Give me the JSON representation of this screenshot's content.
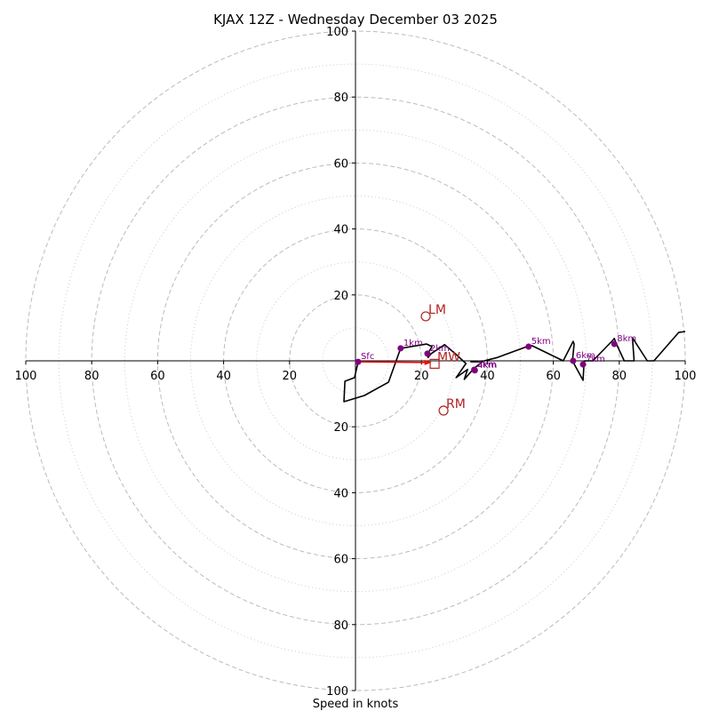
{
  "chart_data": {
    "type": "line",
    "subtype": "hodograph",
    "title": "KJAX 12Z - Wednesday December 03 2025",
    "xlabel": "Speed in knots",
    "ylabel": "",
    "units": "knots",
    "range": [
      0,
      100
    ],
    "ring_major": [
      20,
      40,
      60,
      80,
      100
    ],
    "ring_minor": [
      10,
      30,
      50,
      70,
      90
    ],
    "x_tick_labels_left": [
      "100",
      "80",
      "60",
      "40",
      "20"
    ],
    "x_tick_labels_right": [
      "20",
      "40",
      "60",
      "80",
      "100"
    ],
    "y_tick_labels_top": [
      "100",
      "80",
      "60",
      "40",
      "20"
    ],
    "y_tick_labels_bottom": [
      "20",
      "40",
      "60",
      "80",
      "100"
    ],
    "grid": true,
    "colors": {
      "hodograph_line": "#000000",
      "height_markers": "#800080",
      "storm_motion": "#b22222",
      "shear_vector": "#ff0000",
      "grid": "#bbbbbb",
      "axes": "#000000"
    },
    "hodograph_uv": [
      [
        0.8,
        -0.3
      ],
      [
        -0.3,
        -5.1
      ],
      [
        -3.2,
        -6.2
      ],
      [
        -3.5,
        -12.4
      ],
      [
        2.7,
        -10.5
      ],
      [
        10.0,
        -6.5
      ],
      [
        13.7,
        3.8
      ],
      [
        21.6,
        5.1
      ],
      [
        23.2,
        4.3
      ],
      [
        21.8,
        2.0
      ],
      [
        22.0,
        1.0
      ],
      [
        23.0,
        2.2
      ],
      [
        27.0,
        4.9
      ],
      [
        30.0,
        2.4
      ],
      [
        33.5,
        -0.8
      ],
      [
        30.5,
        -5.1
      ],
      [
        34.0,
        -2.6
      ],
      [
        33.0,
        -5.6
      ],
      [
        36.0,
        -2.2
      ],
      [
        38.5,
        -0.3
      ],
      [
        35.0,
        -0.3
      ],
      [
        39.0,
        0.0
      ],
      [
        43.0,
        1.0
      ],
      [
        52.0,
        4.3
      ],
      [
        53.5,
        4.6
      ],
      [
        63.0,
        0.0
      ],
      [
        66.0,
        5.9
      ],
      [
        66.3,
        5.1
      ],
      [
        65.8,
        0.0
      ],
      [
        69.0,
        -5.9
      ],
      [
        69.3,
        -1.1
      ],
      [
        69.5,
        0.0
      ],
      [
        72.0,
        0.0
      ],
      [
        78.0,
        6.2
      ],
      [
        78.5,
        6.8
      ],
      [
        79.0,
        5.4
      ],
      [
        81.5,
        0.0
      ],
      [
        84.5,
        0.0
      ],
      [
        84.0,
        7.0
      ],
      [
        88.5,
        0.0
      ],
      [
        90.5,
        0.0
      ],
      [
        98.0,
        8.6
      ],
      [
        100.0,
        8.9
      ]
    ],
    "height_markers": [
      {
        "label": "Sfc",
        "u": 0.8,
        "v": -0.3
      },
      {
        "label": "1km",
        "u": 13.7,
        "v": 3.8
      },
      {
        "label": "2km",
        "u": 21.8,
        "v": 2.2
      },
      {
        "label": "3km",
        "u": 36.0,
        "v": -2.7
      },
      {
        "label": "4km",
        "u": 36.2,
        "v": -2.9
      },
      {
        "label": "5km",
        "u": 52.5,
        "v": 4.3
      },
      {
        "label": "6km",
        "u": 66.0,
        "v": 0.0
      },
      {
        "label": "7km",
        "u": 69.0,
        "v": -1.1
      },
      {
        "label": "8km",
        "u": 78.5,
        "v": 5.1
      }
    ],
    "storm_motion": [
      {
        "label": "LM",
        "u": 21.3,
        "v": 13.5,
        "marker": "circle"
      },
      {
        "label": "RM",
        "u": 26.7,
        "v": -15.1,
        "marker": "circle"
      },
      {
        "label": "MW",
        "u": 24.0,
        "v": -0.9,
        "marker": "square"
      }
    ],
    "shear_vector": {
      "from": [
        0.8,
        -0.3
      ],
      "to": [
        22.0,
        -0.5
      ]
    }
  }
}
